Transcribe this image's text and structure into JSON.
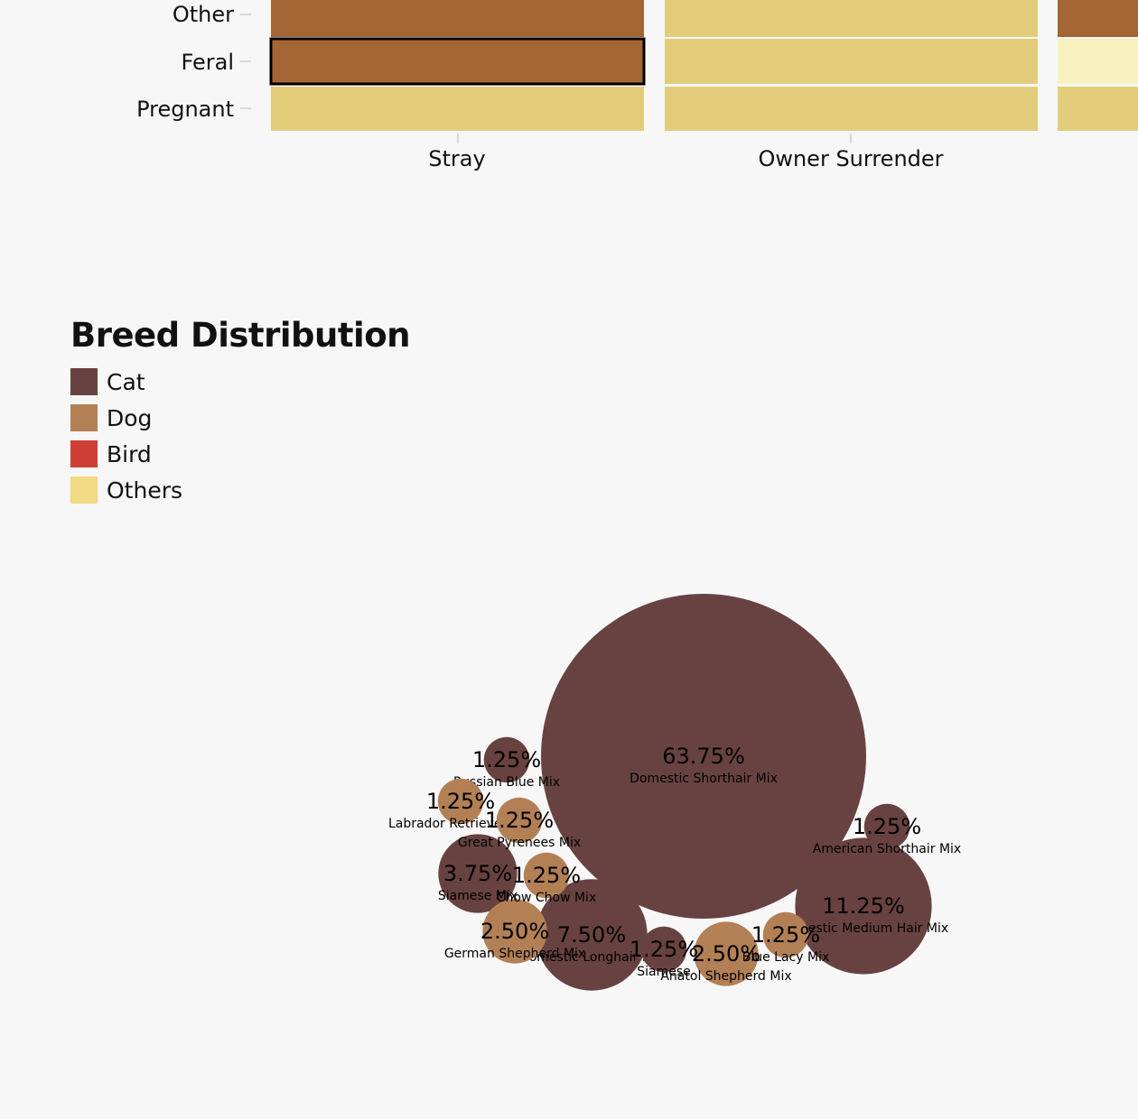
{
  "colors": {
    "brown": "#a46534",
    "yellow": "#e3cd7a",
    "lightyellow": "#f8f1c0",
    "cat": "#684241",
    "dog": "#b38055",
    "bird": "#cf3e35",
    "others": "#f0da82",
    "background": "#f7f7f7"
  },
  "mosaic": {
    "y_categories": [
      "Other",
      "Feral",
      "Pregnant"
    ],
    "x_categories": [
      "Stray",
      "Owner Surrender"
    ],
    "highlighted": {
      "column": "Stray",
      "row": "Feral"
    }
  },
  "legend": {
    "title": "Breed Distribution",
    "items": [
      {
        "label": "Cat",
        "color": "#684241"
      },
      {
        "label": "Dog",
        "color": "#b38055"
      },
      {
        "label": "Bird",
        "color": "#cf3e35"
      },
      {
        "label": "Others",
        "color": "#f0da82"
      }
    ]
  },
  "chart_data": [
    {
      "type": "heatmap",
      "title": "",
      "categories_x": [
        "Stray",
        "Owner Surrender"
      ],
      "categories_y": [
        "Other",
        "Feral",
        "Pregnant"
      ],
      "cells": [
        {
          "x": "Stray",
          "y": "Other",
          "color": "#a46534"
        },
        {
          "x": "Stray",
          "y": "Feral",
          "color": "#a46534"
        },
        {
          "x": "Stray",
          "y": "Pregnant",
          "color": "#e3cd7a"
        },
        {
          "x": "Owner Surrender",
          "y": "Other",
          "color": "#e3cd7a"
        },
        {
          "x": "Owner Surrender",
          "y": "Feral",
          "color": "#e3cd7a"
        },
        {
          "x": "Owner Surrender",
          "y": "Pregnant",
          "color": "#e3cd7a"
        }
      ]
    },
    {
      "type": "bubble",
      "title": "Breed Distribution",
      "series": [
        {
          "name": "Domestic Shorthair Mix",
          "value": 63.75,
          "label": "63.75%",
          "animal": "Cat"
        },
        {
          "name": "Domestic Medium Hair Mix",
          "value": 11.25,
          "label": "11.25%",
          "animal": "Cat"
        },
        {
          "name": "Domestic Longhair Mix",
          "value": 7.5,
          "label": "7.50%",
          "animal": "Cat"
        },
        {
          "name": "Siamese Mix",
          "value": 3.75,
          "label": "3.75%",
          "animal": "Cat"
        },
        {
          "name": "German Shepherd Mix",
          "value": 2.5,
          "label": "2.50%",
          "animal": "Dog"
        },
        {
          "name": "Anatol Shepherd Mix",
          "value": 2.5,
          "label": "2.50%",
          "animal": "Dog"
        },
        {
          "name": "American Shorthair Mix",
          "value": 1.25,
          "label": "1.25%",
          "animal": "Cat"
        },
        {
          "name": "Russian Blue Mix",
          "value": 1.25,
          "label": "1.25%",
          "animal": "Cat"
        },
        {
          "name": "Siamese",
          "value": 1.25,
          "label": "1.25%",
          "animal": "Cat"
        },
        {
          "name": "Labrador Retriever Mix",
          "value": 1.25,
          "label": "1.25%",
          "animal": "Dog"
        },
        {
          "name": "Great Pyrenees Mix",
          "value": 1.25,
          "label": "1.25%",
          "animal": "Dog"
        },
        {
          "name": "Chow Chow Mix",
          "value": 1.25,
          "label": "1.25%",
          "animal": "Dog"
        },
        {
          "name": "Blue Lacy Mix",
          "value": 1.25,
          "label": "1.25%",
          "animal": "Dog"
        }
      ]
    }
  ]
}
